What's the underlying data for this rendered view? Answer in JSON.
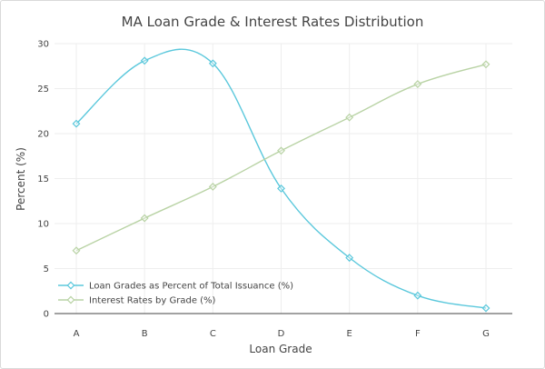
{
  "colors": {
    "series_1": "#5bc8dc",
    "series_2": "#b9d3a5",
    "grid": "#eeeeee",
    "axis": "#444444",
    "text": "#444444"
  },
  "chart_data": {
    "type": "line",
    "title": "MA Loan Grade & Interest Rates Distribution",
    "xlabel": "Loan Grade",
    "ylabel": "Percent (%)",
    "categories": [
      "A",
      "B",
      "C",
      "D",
      "E",
      "F",
      "G"
    ],
    "ylim": [
      0,
      30
    ],
    "yticks": [
      0,
      5,
      10,
      15,
      20,
      25,
      30
    ],
    "grid": true,
    "legend_position": "bottom-left",
    "marker": "diamond",
    "series": [
      {
        "name": "Loan Grades as Percent of Total Issuance (%)",
        "values": [
          21.1,
          28.1,
          27.8,
          13.9,
          6.2,
          2.0,
          0.6
        ],
        "smoothing": "spline",
        "color": "#5bc8dc"
      },
      {
        "name": "Interest Rates by Grade (%)",
        "values": [
          7.0,
          10.6,
          14.1,
          18.1,
          21.8,
          25.5,
          27.7
        ],
        "smoothing": "spline",
        "color": "#b9d3a5"
      }
    ]
  }
}
